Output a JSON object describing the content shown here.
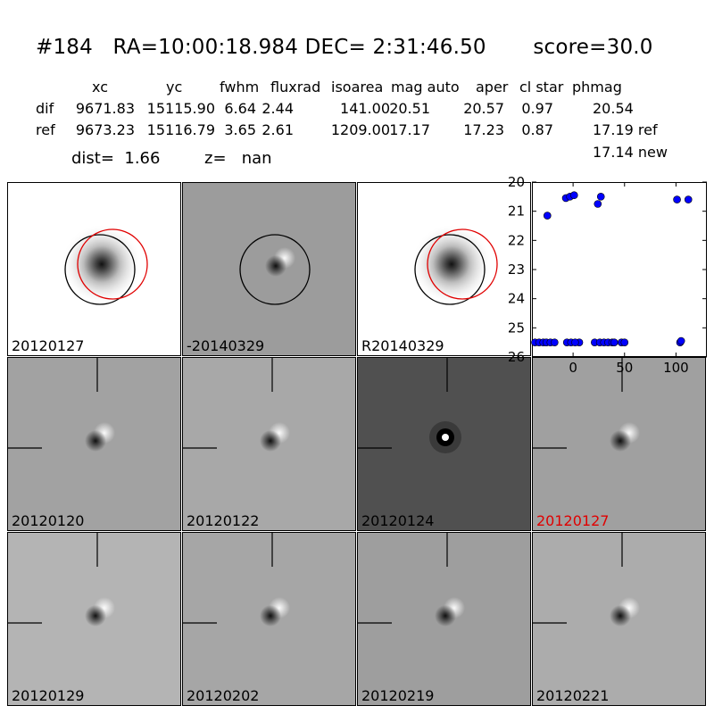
{
  "header": {
    "id": "#184",
    "ra": "RA=10:00:18.984",
    "dec": "DEC= 2:31:46.50",
    "score": "score=30.0"
  },
  "table": {
    "columns": [
      "xc",
      "yc",
      "fwhm",
      "fluxrad",
      "isoarea",
      "mag auto",
      "aper",
      "cl star",
      "phmag"
    ],
    "rows": [
      {
        "label": "dif",
        "values": [
          "9671.83",
          "15115.90",
          "6.64",
          "2.44",
          "141.00",
          "20.51",
          "20.57",
          "0.97",
          "20.54"
        ]
      },
      {
        "label": "ref",
        "values": [
          "9673.23",
          "15116.79",
          "3.65",
          "2.61",
          "1209.00",
          "17.17",
          "17.23",
          "0.87",
          "17.19 ref"
        ]
      }
    ],
    "extra": "17.14 new",
    "dist": "dist=  1.66",
    "z": "z=   nan"
  },
  "panels": [
    {
      "label": "20120127",
      "bg": "#ffffff",
      "kind": "ref",
      "circles": true,
      "red_label": false
    },
    {
      "label": "-20140329",
      "bg": "#9c9c9c",
      "kind": "dif",
      "circles": true,
      "red_label": false
    },
    {
      "label": "R20140329",
      "bg": "#ffffff",
      "kind": "ref",
      "circles": true,
      "red_label": false
    },
    {
      "label": "20120120",
      "bg": "#a2a2a2",
      "kind": "dif",
      "crosshair": true,
      "red_label": false
    },
    {
      "label": "20120122",
      "bg": "#a8a8a8",
      "kind": "dif",
      "crosshair": true,
      "red_label": false
    },
    {
      "label": "20120124",
      "bg": "#505050",
      "kind": "ring",
      "crosshair": true,
      "red_label": false
    },
    {
      "label": "20120127",
      "bg": "#a0a0a0",
      "kind": "dif",
      "crosshair": true,
      "red_label": true
    },
    {
      "label": "20120129",
      "bg": "#b4b4b4",
      "kind": "dif",
      "crosshair": true,
      "red_label": false
    },
    {
      "label": "20120202",
      "bg": "#a6a6a6",
      "kind": "dif",
      "crosshair": true,
      "red_label": false
    },
    {
      "label": "20120219",
      "bg": "#9e9e9e",
      "kind": "dif",
      "crosshair": true,
      "red_label": false
    },
    {
      "label": "20120221",
      "bg": "#acacac",
      "kind": "dif",
      "crosshair": true,
      "red_label": false
    }
  ],
  "chart_data": {
    "type": "scatter",
    "title": "",
    "xlabel": "",
    "ylabel": "",
    "xlim": [
      -40,
      130
    ],
    "ylim": [
      26,
      20
    ],
    "y_inverted": true,
    "xticks": [
      0,
      50,
      100
    ],
    "xtick_labels": [
      "0",
      "50",
      "100"
    ],
    "yticks": [
      20,
      21,
      22,
      23,
      24,
      25,
      26
    ],
    "ytick_labels": [
      "20",
      "21",
      "22",
      "23",
      "24",
      "25",
      "26"
    ],
    "grid": false,
    "point_color": "#0000ff",
    "series": [
      {
        "x": [
          -37,
          -33,
          -29,
          -26,
          -22,
          -18,
          -25,
          -7,
          -3,
          1,
          6,
          -6,
          -2,
          2,
          21,
          27,
          24,
          26,
          30,
          34,
          38,
          40,
          47,
          50,
          104,
          105,
          101,
          112
        ],
        "y": [
          25.5,
          25.5,
          25.5,
          25.5,
          25.5,
          25.5,
          21.15,
          20.55,
          20.5,
          20.45,
          25.5,
          25.5,
          25.5,
          25.5,
          25.5,
          20.5,
          20.75,
          25.5,
          25.5,
          25.5,
          25.5,
          25.5,
          25.5,
          25.5,
          25.5,
          25.45,
          20.6,
          20.6
        ]
      }
    ]
  }
}
